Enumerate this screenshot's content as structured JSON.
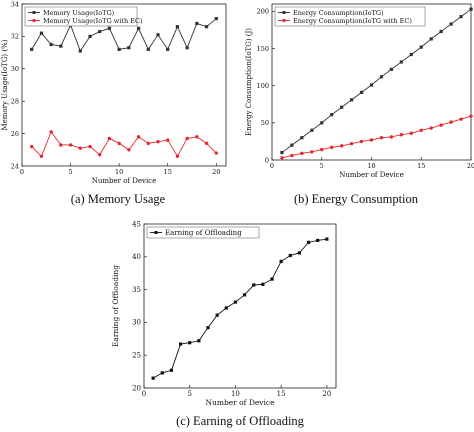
{
  "captions": {
    "a": "(a) Memory Usage",
    "b": "(b) Energy Consumption",
    "c": "(c) Earning of Offloading"
  },
  "chart_data": [
    {
      "id": "a",
      "type": "line",
      "xlabel": "Number of Device",
      "ylabel": "Memory Usage(IoTG) (%)",
      "xlim": [
        0,
        21
      ],
      "ylim": [
        24,
        34
      ],
      "xticks": [
        0,
        5,
        10,
        15,
        20
      ],
      "yticks": [
        24,
        26,
        28,
        30,
        32,
        34
      ],
      "legend_position": "top-left",
      "series": [
        {
          "name": "Memory Usage(IoTG)",
          "color": "#333333",
          "marker": "square",
          "x": [
            1,
            2,
            3,
            4,
            5,
            6,
            7,
            8,
            9,
            10,
            11,
            12,
            13,
            14,
            15,
            16,
            17,
            18,
            19,
            20
          ],
          "values": [
            31.2,
            32.2,
            31.5,
            31.4,
            32.7,
            31.1,
            32.0,
            32.3,
            32.5,
            31.2,
            31.3,
            32.5,
            31.2,
            32.1,
            31.2,
            32.6,
            31.3,
            32.8,
            32.6,
            33.1
          ]
        },
        {
          "name": "Memory Usage(IoTG with EC)",
          "color": "#e8272a",
          "marker": "circle",
          "x": [
            1,
            2,
            3,
            4,
            5,
            6,
            7,
            8,
            9,
            10,
            11,
            12,
            13,
            14,
            15,
            16,
            17,
            18,
            19,
            20
          ],
          "values": [
            25.2,
            24.6,
            26.1,
            25.3,
            25.3,
            25.1,
            25.2,
            24.7,
            25.7,
            25.4,
            25.0,
            25.8,
            25.4,
            25.5,
            25.6,
            24.6,
            25.7,
            25.8,
            25.4,
            24.8
          ]
        }
      ]
    },
    {
      "id": "b",
      "type": "line",
      "xlabel": "Number of Device",
      "ylabel": "Energy Consumption(IoTG)  (J)",
      "xlim": [
        0,
        20
      ],
      "ylim": [
        0,
        210
      ],
      "xticks": [
        0,
        5,
        10,
        15,
        20
      ],
      "yticks": [
        0,
        50,
        100,
        150,
        200
      ],
      "legend_position": "top-left",
      "series": [
        {
          "name": "Energy Consumption(IoTG)",
          "color": "#333333",
          "marker": "square",
          "x": [
            1,
            2,
            3,
            4,
            5,
            6,
            7,
            8,
            9,
            10,
            11,
            12,
            13,
            14,
            15,
            16,
            17,
            18,
            19,
            20
          ],
          "values": [
            10,
            20,
            30,
            40,
            50,
            61,
            71,
            81,
            91,
            101,
            112,
            122,
            132,
            142,
            152,
            163,
            173,
            183,
            193,
            203
          ]
        },
        {
          "name": "Energy Consumption(IoTG with EC)",
          "color": "#e8272a",
          "marker": "circle",
          "x": [
            1,
            2,
            3,
            4,
            5,
            6,
            7,
            8,
            9,
            10,
            11,
            12,
            13,
            14,
            15,
            16,
            17,
            18,
            19,
            20
          ],
          "values": [
            3,
            6,
            9,
            11,
            14,
            17,
            19,
            22,
            25,
            27,
            30,
            31,
            34,
            36,
            40,
            43,
            47,
            51,
            55,
            59
          ]
        }
      ]
    },
    {
      "id": "c",
      "type": "line",
      "xlabel": "Number of Device",
      "ylabel": "Earning of Offloading",
      "xlim": [
        0,
        21
      ],
      "ylim": [
        20,
        45
      ],
      "xticks": [
        0,
        5,
        10,
        15,
        20
      ],
      "yticks": [
        20,
        25,
        30,
        35,
        40,
        45
      ],
      "legend_position": "top-left",
      "series": [
        {
          "name": "Earning of Offloading",
          "color": "#111111",
          "marker": "square",
          "x": [
            1,
            2,
            3,
            4,
            5,
            6,
            7,
            8,
            9,
            10,
            11,
            12,
            13,
            14,
            15,
            16,
            17,
            18,
            19,
            20
          ],
          "values": [
            21.5,
            22.3,
            22.7,
            26.7,
            26.9,
            27.2,
            29.2,
            31.1,
            32.2,
            33.1,
            34.2,
            35.7,
            35.8,
            36.6,
            39.3,
            40.2,
            40.6,
            42.2,
            42.5,
            42.7
          ]
        }
      ]
    }
  ]
}
